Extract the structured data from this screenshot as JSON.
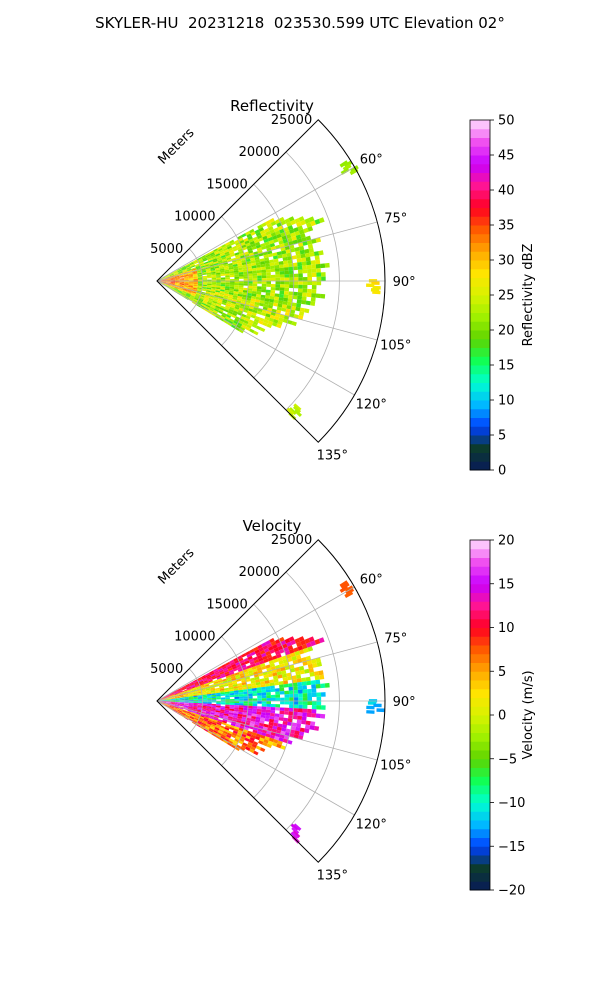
{
  "figure": {
    "suptitle": "SKYLER-HU  20231218  023530.599 UTC Elevation 02°"
  },
  "chart_data": [
    {
      "type": "heatmap",
      "title": "Reflectivity",
      "subtype": "polar radar PPI sector",
      "radial_axis_label": "Meters",
      "range_ticks": [
        5000,
        10000,
        15000,
        20000,
        25000
      ],
      "range_tick_labels": [
        "5000",
        "10000",
        "15000",
        "20000",
        "25000"
      ],
      "r_max": 25000,
      "azimuth_range_deg": [
        45,
        135
      ],
      "azimuth_ticks": [
        60,
        75,
        90,
        105,
        120,
        135
      ],
      "azimuth_tick_labels": [
        "60°",
        "75°",
        "90°",
        "105°",
        "120°",
        "135°"
      ],
      "grid": true,
      "colorbar": {
        "label": "Reflectivity dBZ",
        "vmin": 0,
        "vmax": 50,
        "ticks": [
          0,
          5,
          10,
          15,
          20,
          25,
          30,
          35,
          40,
          45,
          50
        ],
        "tick_labels": [
          "0",
          "5",
          "10",
          "15",
          "20",
          "25",
          "30",
          "35",
          "40",
          "45",
          "50"
        ],
        "colormap": [
          "#081a59",
          "#0c3b2e",
          "#0040ff",
          "#00b8ff",
          "#00ffd0",
          "#11ff55",
          "#5fd400",
          "#9ff000",
          "#d8f200",
          "#ffe400",
          "#ffa800",
          "#ff5a00",
          "#ff0020",
          "#ff1493",
          "#c800ff",
          "#f050f0",
          "#ffe0ff"
        ]
      },
      "features": [
        {
          "feature": "main precipitation wedge",
          "az_min": 62,
          "az_max": 122,
          "range_max_m": 19000,
          "typical_dBZ": 22
        },
        {
          "feature": "near-radar high reflectivity",
          "az_min": 72,
          "az_max": 110,
          "range_max_m": 4500,
          "typical_dBZ": 32
        },
        {
          "feature": "distant echo ~60°",
          "azimuth_deg": 59,
          "range_m": 24000,
          "typical_dBZ": 22
        },
        {
          "feature": "distant echo ~90°",
          "azimuth_deg": 91,
          "range_m": 23500,
          "typical_dBZ": 28
        },
        {
          "feature": "distant echo ~133°",
          "azimuth_deg": 133,
          "range_m": 20500,
          "typical_dBZ": 24
        }
      ]
    },
    {
      "type": "heatmap",
      "title": "Velocity",
      "subtype": "polar radar PPI sector",
      "radial_axis_label": "Meters",
      "range_ticks": [
        5000,
        10000,
        15000,
        20000,
        25000
      ],
      "range_tick_labels": [
        "5000",
        "10000",
        "15000",
        "20000",
        "25000"
      ],
      "r_max": 25000,
      "azimuth_range_deg": [
        45,
        135
      ],
      "azimuth_ticks": [
        60,
        75,
        90,
        105,
        120,
        135
      ],
      "azimuth_tick_labels": [
        "60°",
        "75°",
        "90°",
        "105°",
        "120°",
        "135°"
      ],
      "grid": true,
      "colorbar": {
        "label": "Velocity (m/s)",
        "vmin": -20,
        "vmax": 20,
        "ticks": [
          -20,
          -15,
          -10,
          -5,
          0,
          5,
          10,
          15,
          20
        ],
        "tick_labels": [
          "−20",
          "−15",
          "−10",
          "−5",
          "0",
          "5",
          "10",
          "15",
          "20"
        ],
        "colormap": [
          "#081a59",
          "#0c3b2e",
          "#0040ff",
          "#00b8ff",
          "#00ffd0",
          "#11ff55",
          "#5fd400",
          "#9ff000",
          "#d8f200",
          "#ffe400",
          "#ffa800",
          "#ff5a00",
          "#ff0020",
          "#ff1493",
          "#c800ff",
          "#f050f0",
          "#ffe0ff"
        ]
      },
      "features": [
        {
          "feature": "approaching flow north side",
          "az_min": 62,
          "az_max": 82,
          "range_max_m": 19000,
          "typical_velocity": 5
        },
        {
          "feature": "receding flow north edge",
          "az_min": 62,
          "az_max": 70,
          "range_max_m": 19000,
          "typical_velocity": 12
        },
        {
          "feature": "near-zero / negative band",
          "az_min": 82,
          "az_max": 93,
          "range_max_m": 17000,
          "typical_velocity": -10
        },
        {
          "feature": "strong receding south side",
          "az_min": 93,
          "az_max": 108,
          "range_max_m": 17500,
          "typical_velocity": 15
        },
        {
          "feature": "mixed south edge",
          "az_min": 108,
          "az_max": 122,
          "range_max_m": 15000,
          "typical_velocity": 6
        },
        {
          "feature": "distant echo ~60°",
          "azimuth_deg": 59,
          "range_m": 24000,
          "typical_velocity": 8
        },
        {
          "feature": "distant echo ~90°",
          "azimuth_deg": 91,
          "range_m": 23500,
          "typical_velocity": -12
        },
        {
          "feature": "distant echo ~133°",
          "azimuth_deg": 133,
          "range_m": 20500,
          "typical_velocity": 15
        }
      ]
    }
  ]
}
